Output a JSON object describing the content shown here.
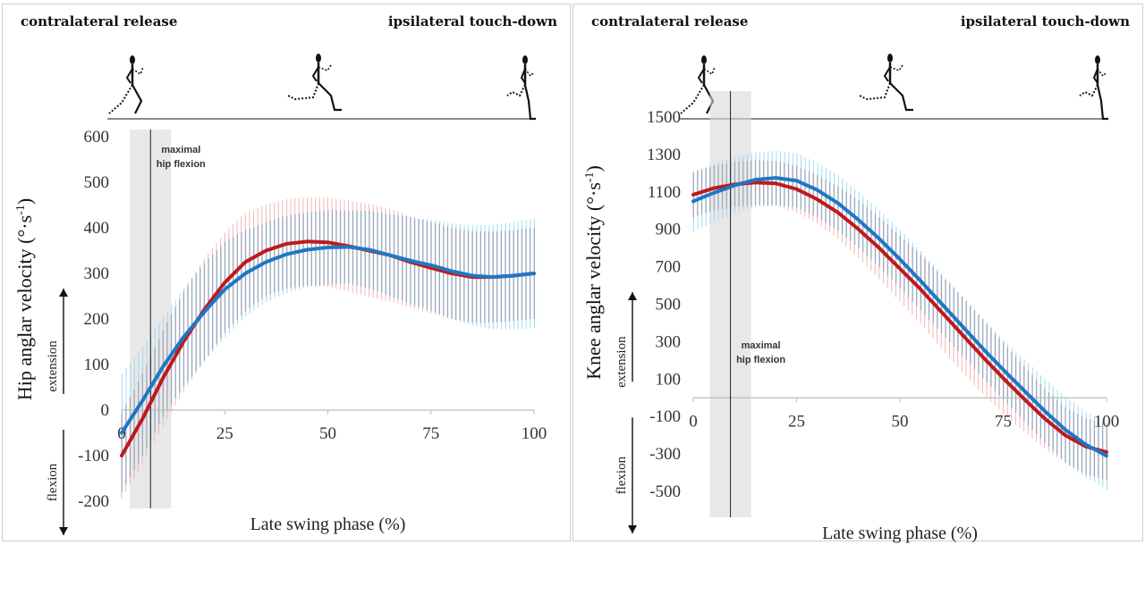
{
  "phases": {
    "start": "contralateral release",
    "end": "ipsilateral touch-down"
  },
  "colors": {
    "series_a": "#c0191c",
    "series_b": "#1f77c4",
    "band_a": "#f4a8a8",
    "band_b": "#8fd8f0",
    "band_overlap": "#8a98b2",
    "shade": "#d9d9d9"
  },
  "chart_data": [
    {
      "type": "line",
      "panel": "hip",
      "xlabel": "Late swing phase (%)",
      "ylabel_main": "Hip anglar velocity (°·s",
      "ylabel_sup": "-1",
      "ylabel_end": ")",
      "direction_up": "extension",
      "direction_down": "flexion",
      "annotation": [
        "maximal",
        "hip flexion"
      ],
      "annotation_x": 7,
      "shaded_x": [
        2,
        12
      ],
      "xlim": [
        0,
        100
      ],
      "ylim": [
        -200,
        600
      ],
      "xticks": [
        0,
        25,
        50,
        75,
        100
      ],
      "yticks": [
        -200,
        -100,
        0,
        100,
        200,
        300,
        400,
        500,
        600
      ],
      "grid": false,
      "series": [
        {
          "x": [
            0,
            5,
            10,
            15,
            20,
            25,
            30,
            35,
            40,
            45,
            50,
            55,
            60,
            65,
            70,
            75,
            80,
            85,
            90,
            95,
            100
          ],
          "values": [
            -100,
            -20,
            70,
            150,
            220,
            280,
            325,
            350,
            365,
            370,
            368,
            360,
            350,
            340,
            325,
            312,
            300,
            292,
            292,
            295,
            300
          ],
          "sd": [
            95,
            100,
            105,
            110,
            112,
            110,
            108,
            100,
            98,
            97,
            98,
            100,
            102,
            102,
            100,
            100,
            100,
            100,
            100,
            100,
            100
          ]
        },
        {
          "x": [
            0,
            5,
            10,
            15,
            20,
            25,
            30,
            35,
            40,
            45,
            50,
            55,
            60,
            65,
            70,
            75,
            80,
            85,
            90,
            95,
            100
          ],
          "values": [
            -50,
            20,
            95,
            160,
            215,
            265,
            300,
            325,
            342,
            352,
            357,
            358,
            352,
            340,
            328,
            318,
            305,
            295,
            292,
            295,
            300
          ],
          "sd": [
            130,
            120,
            110,
            108,
            108,
            105,
            95,
            88,
            85,
            82,
            82,
            80,
            85,
            90,
            95,
            100,
            105,
            110,
            115,
            118,
            120
          ]
        }
      ]
    },
    {
      "type": "line",
      "panel": "knee",
      "xlabel": "Late swing phase (%)",
      "ylabel_main": "Knee anglar velocity (°·s",
      "ylabel_sup": "-1",
      "ylabel_end": ")",
      "direction_up": "extension",
      "direction_down": "flexion",
      "annotation": [
        "maximal",
        "hip flexion"
      ],
      "annotation_x": 9,
      "shaded_x": [
        4,
        14
      ],
      "xlim": [
        0,
        100
      ],
      "ylim": [
        -600,
        1600
      ],
      "xticks": [
        0,
        25,
        50,
        75,
        100
      ],
      "yticks": [
        -500,
        -300,
        -100,
        100,
        300,
        500,
        700,
        900,
        1100,
        1300,
        1500
      ],
      "grid": false,
      "series": [
        {
          "x": [
            0,
            5,
            10,
            15,
            20,
            25,
            30,
            35,
            40,
            45,
            50,
            55,
            60,
            65,
            70,
            75,
            80,
            85,
            90,
            95,
            100
          ],
          "values": [
            1085,
            1120,
            1140,
            1150,
            1145,
            1115,
            1060,
            990,
            900,
            800,
            690,
            580,
            460,
            340,
            220,
            105,
            -5,
            -110,
            -200,
            -260,
            -290
          ],
          "sd": [
            120,
            120,
            120,
            120,
            120,
            125,
            130,
            140,
            155,
            165,
            175,
            185,
            195,
            200,
            200,
            190,
            175,
            160,
            150,
            150,
            150
          ]
        },
        {
          "x": [
            0,
            5,
            10,
            15,
            20,
            25,
            30,
            35,
            40,
            45,
            50,
            55,
            60,
            65,
            70,
            75,
            80,
            85,
            90,
            95,
            100
          ],
          "values": [
            1050,
            1095,
            1135,
            1165,
            1175,
            1160,
            1110,
            1040,
            950,
            850,
            740,
            625,
            505,
            385,
            265,
            150,
            40,
            -70,
            -170,
            -250,
            -310
          ],
          "sd": [
            160,
            155,
            150,
            145,
            145,
            145,
            145,
            148,
            150,
            152,
            155,
            158,
            160,
            160,
            160,
            160,
            165,
            170,
            175,
            178,
            180
          ]
        }
      ]
    }
  ]
}
